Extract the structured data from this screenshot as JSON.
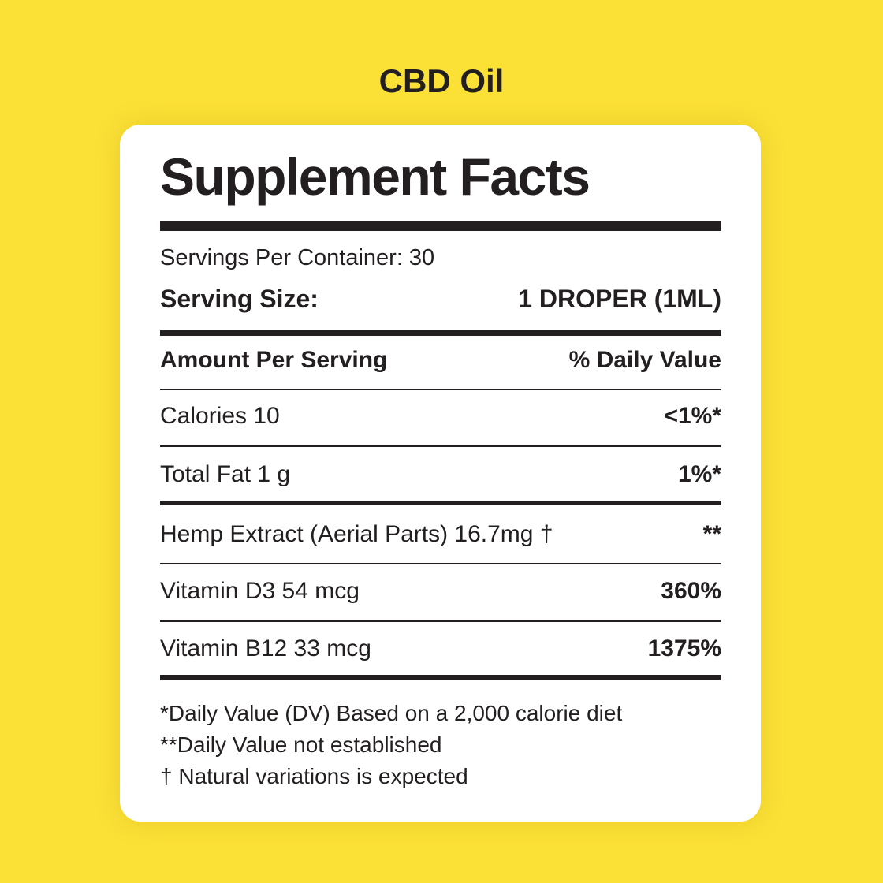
{
  "product_title": "CBD Oil",
  "label": {
    "heading": "Supplement Facts",
    "servings_per_container": "Servings Per Container: 30",
    "serving_size_label": "Serving Size:",
    "serving_size_value": "1 DROPER (1ML)",
    "amount_header": "Amount Per Serving",
    "dv_header": "% Daily Value",
    "rows": [
      {
        "name": "Calories  10",
        "dv": "<1%*"
      },
      {
        "name": "Total Fat  1 g",
        "dv": "1%*"
      },
      {
        "name": "Hemp Extract (Aerial Parts) 16.7mg †",
        "dv": "**"
      },
      {
        "name": "Vitamin D3  54 mcg",
        "dv": "360%"
      },
      {
        "name": "Vitamin B12  33 mcg",
        "dv": "1375%"
      }
    ],
    "footnotes": [
      "*Daily Value (DV) Based on a 2,000 calorie diet",
      "**Daily Value not established",
      "† Natural variations is expected"
    ]
  },
  "colors": {
    "background": "#fbe036",
    "card": "#ffffff",
    "text": "#231f20"
  }
}
